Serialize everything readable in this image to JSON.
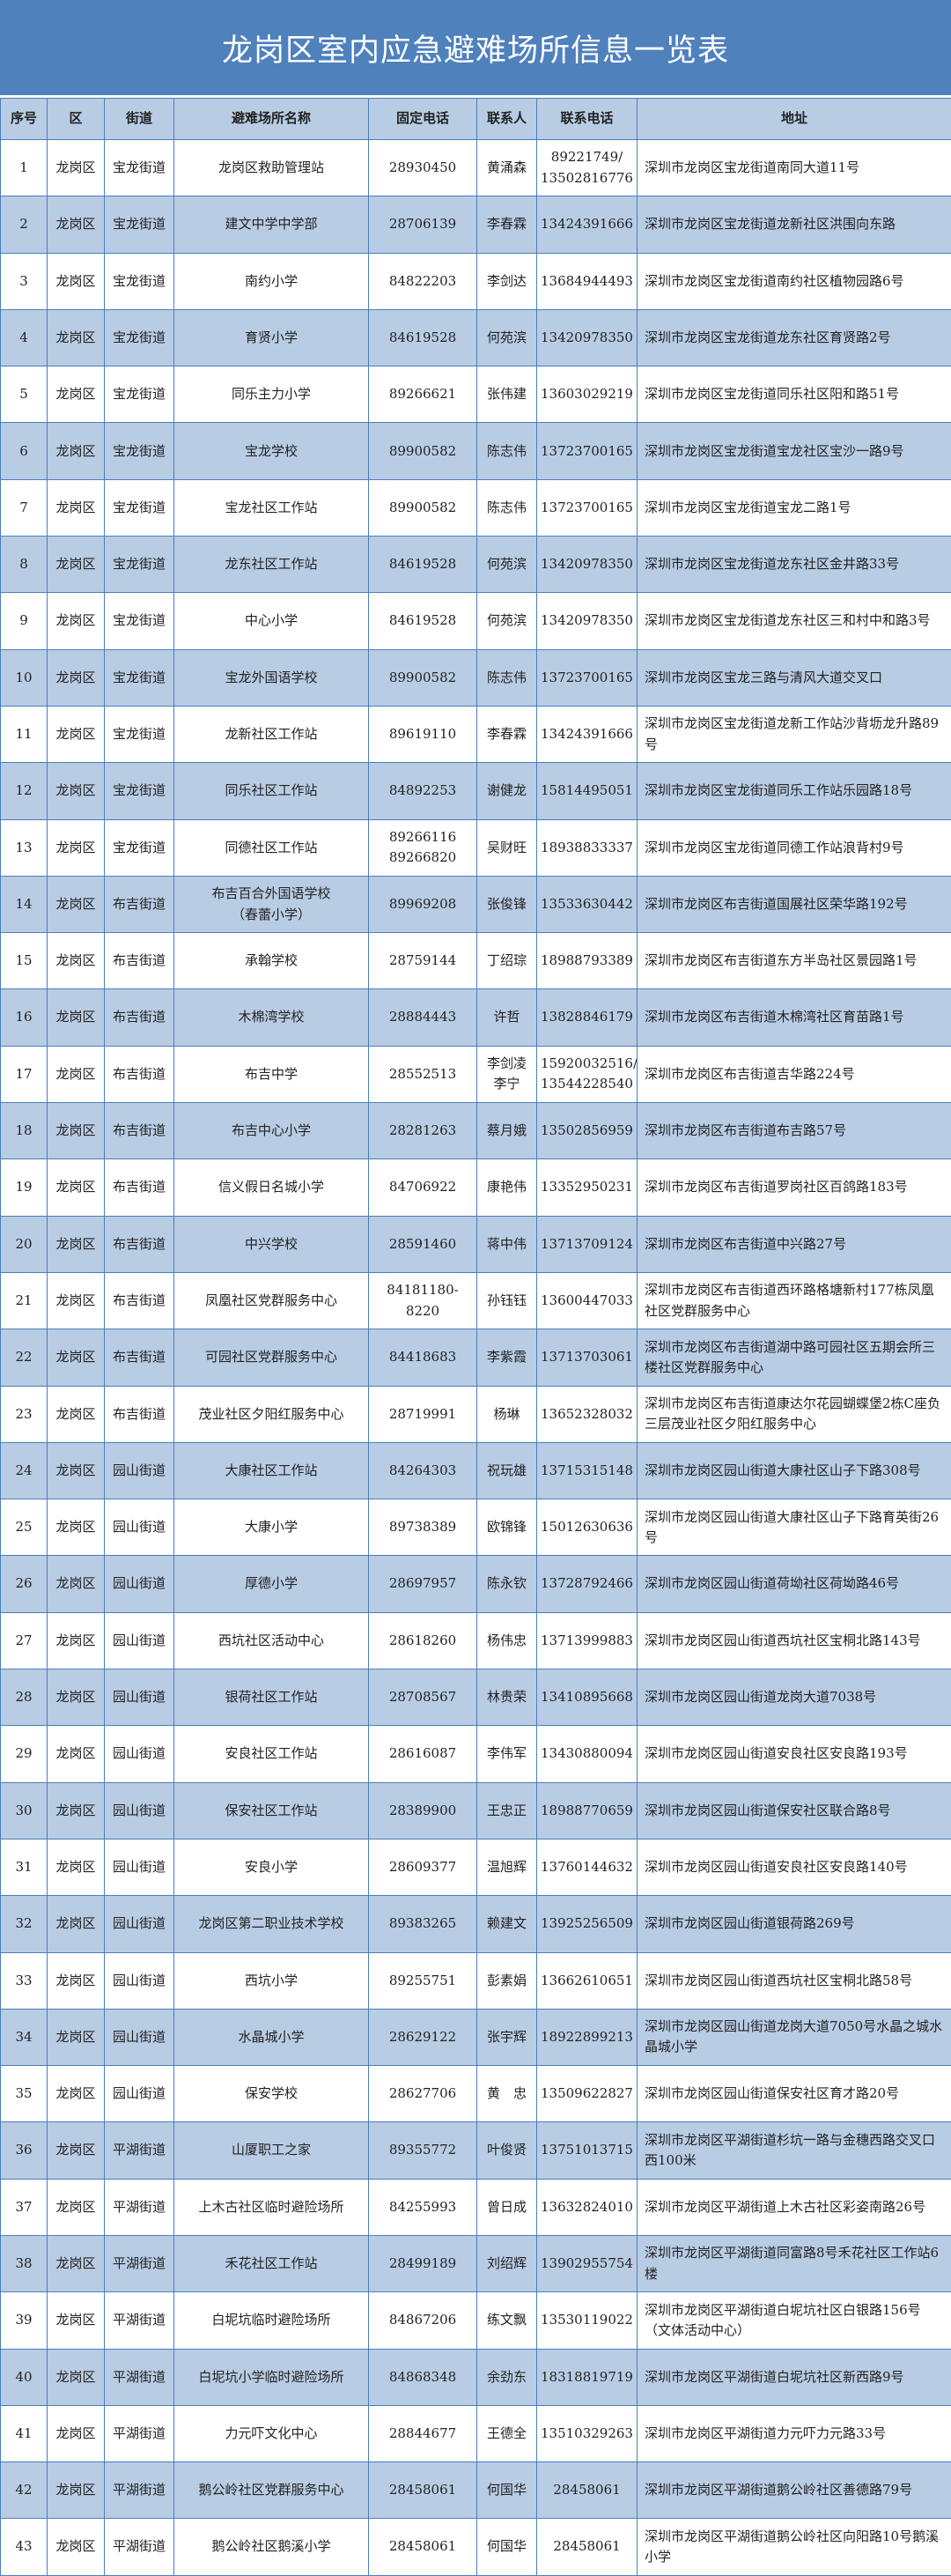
{
  "title": "龙岗区室内应急避难场所信息一览表",
  "colors": {
    "title_band": "#4f81bd",
    "header_row": "#b8cce4",
    "stripe": "#b8cce4",
    "grid": "#4a7ebb"
  },
  "columns": [
    "序号",
    "区",
    "街道",
    "避难场所名称",
    "固定电话",
    "联系人",
    "联系电话",
    "地址"
  ],
  "rows": [
    [
      "1",
      "龙岗区",
      "宝龙街道",
      "龙岗区救助管理站",
      "28930450",
      "黄涌森",
      "89221749/\n13502816776",
      "深圳市龙岗区宝龙街道南同大道11号"
    ],
    [
      "2",
      "龙岗区",
      "宝龙街道",
      "建文中学中学部",
      "28706139",
      "李春霖",
      "13424391666",
      "深圳市龙岗区宝龙街道龙新社区洪围向东路"
    ],
    [
      "3",
      "龙岗区",
      "宝龙街道",
      "南约小学",
      "84822203",
      "李剑达",
      "13684944493",
      "深圳市龙岗区宝龙街道南约社区植物园路6号"
    ],
    [
      "4",
      "龙岗区",
      "宝龙街道",
      "育贤小学",
      "84619528",
      "何苑滨",
      "13420978350",
      "深圳市龙岗区宝龙街道龙东社区育贤路2号"
    ],
    [
      "5",
      "龙岗区",
      "宝龙街道",
      "同乐主力小学",
      "89266621",
      "张伟建",
      "13603029219",
      "深圳市龙岗区宝龙街道同乐社区阳和路51号"
    ],
    [
      "6",
      "龙岗区",
      "宝龙街道",
      "宝龙学校",
      "89900582",
      "陈志伟",
      "13723700165",
      "深圳市龙岗区宝龙街道宝龙社区宝沙一路9号"
    ],
    [
      "7",
      "龙岗区",
      "宝龙街道",
      "宝龙社区工作站",
      "89900582",
      "陈志伟",
      "13723700165",
      "深圳市龙岗区宝龙街道宝龙二路1号"
    ],
    [
      "8",
      "龙岗区",
      "宝龙街道",
      "龙东社区工作站",
      "84619528",
      "何苑滨",
      "13420978350",
      "深圳市龙岗区宝龙街道龙东社区金井路33号"
    ],
    [
      "9",
      "龙岗区",
      "宝龙街道",
      "中心小学",
      "84619528",
      "何苑滨",
      "13420978350",
      "深圳市龙岗区宝龙街道龙东社区三和村中和路3号"
    ],
    [
      "10",
      "龙岗区",
      "宝龙街道",
      "宝龙外国语学校",
      "89900582",
      "陈志伟",
      "13723700165",
      "深圳市龙岗区宝龙三路与清风大道交叉口"
    ],
    [
      "11",
      "龙岗区",
      "宝龙街道",
      "龙新社区工作站",
      "89619110",
      "李春霖",
      "13424391666",
      "深圳市龙岗区宝龙街道龙新工作站沙背坜龙升路89号"
    ],
    [
      "12",
      "龙岗区",
      "宝龙街道",
      "同乐社区工作站",
      "84892253",
      "谢健龙",
      "15814495051",
      "深圳市龙岗区宝龙街道同乐工作站乐园路18号"
    ],
    [
      "13",
      "龙岗区",
      "宝龙街道",
      "同德社区工作站",
      "89266116\n89266820",
      "吴财旺",
      "18938833337",
      "深圳市龙岗区宝龙街道同德工作站浪背村9号"
    ],
    [
      "14",
      "龙岗区",
      "布吉街道",
      "布吉百合外国语学校\n（春蕾小学）",
      "89969208",
      "张俊锋",
      "13533630442",
      "深圳市龙岗区布吉街道国展社区荣华路192号"
    ],
    [
      "15",
      "龙岗区",
      "布吉街道",
      "承翰学校",
      "28759144",
      "丁绍琮",
      "18988793389",
      "深圳市龙岗区布吉街道东方半岛社区景园路1号"
    ],
    [
      "16",
      "龙岗区",
      "布吉街道",
      "木棉湾学校",
      "28884443",
      "许哲",
      "13828846179",
      "深圳市龙岗区布吉街道木棉湾社区育苗路1号"
    ],
    [
      "17",
      "龙岗区",
      "布吉街道",
      "布吉中学",
      "28552513",
      "李剑凌\n李宁",
      "15920032516/\n13544228540",
      "深圳市龙岗区布吉街道吉华路224号"
    ],
    [
      "18",
      "龙岗区",
      "布吉街道",
      "布吉中心小学",
      "28281263",
      "蔡月娥",
      "13502856959",
      "深圳市龙岗区布吉街道布吉路57号"
    ],
    [
      "19",
      "龙岗区",
      "布吉街道",
      "信义假日名城小学",
      "84706922",
      "康艳伟",
      "13352950231",
      "深圳市龙岗区布吉街道罗岗社区百鸽路183号"
    ],
    [
      "20",
      "龙岗区",
      "布吉街道",
      "中兴学校",
      "28591460",
      "蒋中伟",
      "13713709124",
      "深圳市龙岗区布吉街道中兴路27号"
    ],
    [
      "21",
      "龙岗区",
      "布吉街道",
      "凤凰社区党群服务中心",
      "84181180-8220",
      "孙钰钰",
      "13600447033",
      "深圳市龙岗区布吉街道西环路格塘新村177栋凤凰社区党群服务中心"
    ],
    [
      "22",
      "龙岗区",
      "布吉街道",
      "可园社区党群服务中心",
      "84418683",
      "李紫霞",
      "13713703061",
      "深圳市龙岗区布吉街道湖中路可园社区五期会所三楼社区党群服务中心"
    ],
    [
      "23",
      "龙岗区",
      "布吉街道",
      "茂业社区夕阳红服务中心",
      "28719991",
      "杨琳",
      "13652328032",
      "深圳市龙岗区布吉街道康达尔花园蝴蝶堡2栋C座负三层茂业社区夕阳红服务中心"
    ],
    [
      "24",
      "龙岗区",
      "园山街道",
      "大康社区工作站",
      "84264303",
      "祝玩雄",
      "13715315148",
      "深圳市龙岗区园山街道大康社区山子下路308号"
    ],
    [
      "25",
      "龙岗区",
      "园山街道",
      "大康小学",
      "89738389",
      "欧锦锋",
      "15012630636",
      "深圳市龙岗区园山街道大康社区山子下路育英街26号"
    ],
    [
      "26",
      "龙岗区",
      "园山街道",
      "厚德小学",
      "28697957",
      "陈永钦",
      "13728792466",
      "深圳市龙岗区园山街道荷坳社区荷坳路46号"
    ],
    [
      "27",
      "龙岗区",
      "园山街道",
      "西坑社区活动中心",
      "28618260",
      "杨伟忠",
      "13713999883",
      "深圳市龙岗区园山街道西坑社区宝桐北路143号"
    ],
    [
      "28",
      "龙岗区",
      "园山街道",
      "银荷社区工作站",
      "28708567",
      "林贵荣",
      "13410895668",
      "深圳市龙岗区园山街道龙岗大道7038号"
    ],
    [
      "29",
      "龙岗区",
      "园山街道",
      "安良社区工作站",
      "28616087",
      "李伟军",
      "13430880094",
      "深圳市龙岗区园山街道安良社区安良路193号"
    ],
    [
      "30",
      "龙岗区",
      "园山街道",
      "保安社区工作站",
      "28389900",
      "王忠正",
      "18988770659",
      "深圳市龙岗区园山街道保安社区联合路8号"
    ],
    [
      "31",
      "龙岗区",
      "园山街道",
      "安良小学",
      "28609377",
      "温旭辉",
      "13760144632",
      "深圳市龙岗区园山街道安良社区安良路140号"
    ],
    [
      "32",
      "龙岗区",
      "园山街道",
      "龙岗区第二职业技术学校",
      "89383265",
      "赖建文",
      "13925256509",
      "深圳市龙岗区园山街道银荷路269号"
    ],
    [
      "33",
      "龙岗区",
      "园山街道",
      "西坑小学",
      "89255751",
      "彭素娟",
      "13662610651",
      "深圳市龙岗区园山街道西坑社区宝桐北路58号"
    ],
    [
      "34",
      "龙岗区",
      "园山街道",
      "水晶城小学",
      "28629122",
      "张宇辉",
      "18922899213",
      "深圳市龙岗区园山街道龙岗大道7050号水晶之城水晶城小学"
    ],
    [
      "35",
      "龙岗区",
      "园山街道",
      "保安学校",
      "28627706",
      "黄　忠",
      "13509622827",
      "深圳市龙岗区园山街道保安社区育才路20号"
    ],
    [
      "36",
      "龙岗区",
      "平湖街道",
      "山厦职工之家",
      "89355772",
      "叶俊贤",
      "13751013715",
      "深圳市龙岗区平湖街道杉坑一路与金穗西路交叉口西100米"
    ],
    [
      "37",
      "龙岗区",
      "平湖街道",
      "上木古社区临时避险场所",
      "84255993",
      "曾日成",
      "13632824010",
      "深圳市龙岗区平湖街道上木古社区彩姿南路26号"
    ],
    [
      "38",
      "龙岗区",
      "平湖街道",
      "禾花社区工作站",
      "28499189",
      "刘绍辉",
      "13902955754",
      "深圳市龙岗区平湖街道同富路8号禾花社区工作站6楼"
    ],
    [
      "39",
      "龙岗区",
      "平湖街道",
      "白坭坑临时避险场所",
      "84867206",
      "练文飘",
      "13530119022",
      "深圳市龙岗区平湖街道白坭坑社区白银路156号（文体活动中心）"
    ],
    [
      "40",
      "龙岗区",
      "平湖街道",
      "白坭坑小学临时避险场所",
      "84868348",
      "余劲东",
      "18318819719",
      "深圳市龙岗区平湖街道白坭坑社区新西路9号"
    ],
    [
      "41",
      "龙岗区",
      "平湖街道",
      "力元吓文化中心",
      "28844677",
      "王德全",
      "13510329263",
      "深圳市龙岗区平湖街道力元吓力元路33号"
    ],
    [
      "42",
      "龙岗区",
      "平湖街道",
      "鹅公岭社区党群服务中心",
      "28458061",
      "何国华",
      "28458061",
      "深圳市龙岗区平湖街道鹅公岭社区善德路79号"
    ],
    [
      "43",
      "龙岗区",
      "平湖街道",
      "鹅公岭社区鹅溪小学",
      "28458061",
      "何国华",
      "28458061",
      "深圳市龙岗区平湖街道鹅公岭社区向阳路10号鹅溪小学"
    ]
  ]
}
